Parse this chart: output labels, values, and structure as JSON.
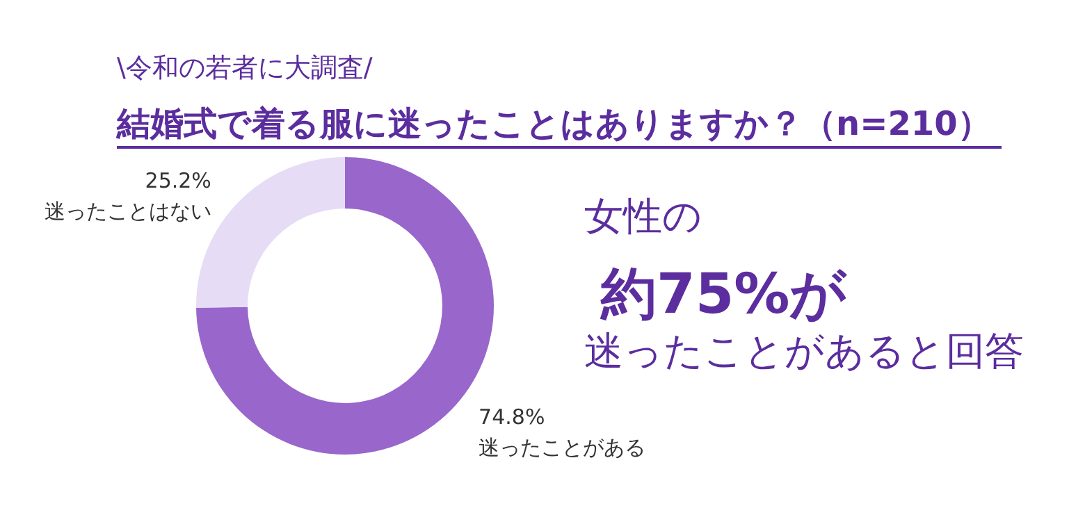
{
  "chart_data": {
    "type": "donut",
    "subtitle": "\\令和の若者に大調査/",
    "title": "結婚式で着る服に迷ったことはありますか？（n=210）",
    "categories": [
      "迷ったことがある",
      "迷ったことはない"
    ],
    "values": [
      74.8,
      25.2
    ],
    "colors": [
      "#9966cc",
      "#e6dcf5"
    ],
    "value_labels": [
      "74.8%",
      "25.2%"
    ],
    "annotations": [
      "女性の",
      "約75%が",
      "迷ったことがあると回答"
    ],
    "legend": false
  }
}
